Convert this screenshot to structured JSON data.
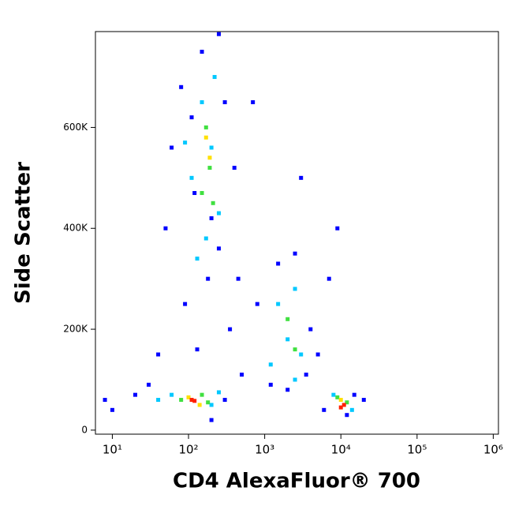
{
  "chart_data": {
    "type": "scatter",
    "x_label": "CD4 AlexaFluor® 700",
    "y_label": "Side Scatter",
    "xscale": "log",
    "xlim": [
      6,
      1170000
    ],
    "xticks": [
      {
        "value": 10,
        "label": "10¹"
      },
      {
        "value": 100,
        "label": "10²"
      },
      {
        "value": 1000,
        "label": "10³"
      },
      {
        "value": 10000,
        "label": "10⁴"
      },
      {
        "value": 100000,
        "label": "10⁵"
      },
      {
        "value": 1000000,
        "label": "10⁶"
      }
    ],
    "ylim": [
      -8000,
      790000
    ],
    "yticks": [
      0,
      {
        "value": 200000,
        "label": "200K"
      },
      {
        "value": 400000,
        "label": "400K"
      },
      {
        "value": 600000,
        "label": "600K"
      }
    ],
    "series": [
      {
        "color": "#0000ff",
        "x": [
          150,
          80,
          300,
          60,
          400,
          120,
          250,
          180,
          90,
          350,
          40,
          20,
          10,
          300,
          200,
          1500,
          2500,
          800,
          4000,
          1200,
          3500,
          5000,
          7000,
          9000,
          15000,
          6000,
          12000,
          30,
          500,
          250,
          110,
          200,
          8,
          700,
          20000,
          3000,
          50,
          130,
          2000,
          450
        ],
        "y": [
          750000,
          680000,
          650000,
          560000,
          520000,
          470000,
          360000,
          300000,
          250000,
          200000,
          150000,
          70000,
          40000,
          60000,
          20000,
          330000,
          350000,
          250000,
          200000,
          90000,
          110000,
          150000,
          300000,
          400000,
          70000,
          40000,
          30000,
          90000,
          110000,
          785000,
          620000,
          420000,
          60000,
          650000,
          60000,
          500000,
          400000,
          160000,
          80000,
          300000
        ]
      },
      {
        "color": "#00c8ff",
        "x": [
          150,
          200,
          110,
          250,
          170,
          130,
          60,
          200,
          40,
          250,
          1500,
          2500,
          2000,
          3000,
          1200,
          2500,
          8000,
          14000,
          220,
          90
        ],
        "y": [
          650000,
          560000,
          500000,
          430000,
          380000,
          340000,
          70000,
          50000,
          60000,
          75000,
          250000,
          280000,
          180000,
          150000,
          130000,
          100000,
          70000,
          40000,
          700000,
          570000
        ]
      },
      {
        "color": "#40e040",
        "x": [
          170,
          190,
          150,
          210,
          80,
          150,
          180,
          2000,
          2500,
          9000,
          12000
        ],
        "y": [
          600000,
          520000,
          470000,
          450000,
          60000,
          70000,
          55000,
          220000,
          160000,
          65000,
          55000
        ]
      },
      {
        "color": "#ffe000",
        "x": [
          190,
          170,
          100,
          140,
          10000
        ],
        "y": [
          540000,
          580000,
          65000,
          50000,
          60000
        ]
      },
      {
        "color": "#ff2000",
        "x": [
          110,
          120,
          10000,
          11000
        ],
        "y": [
          60000,
          58000,
          45000,
          50000
        ]
      }
    ]
  }
}
